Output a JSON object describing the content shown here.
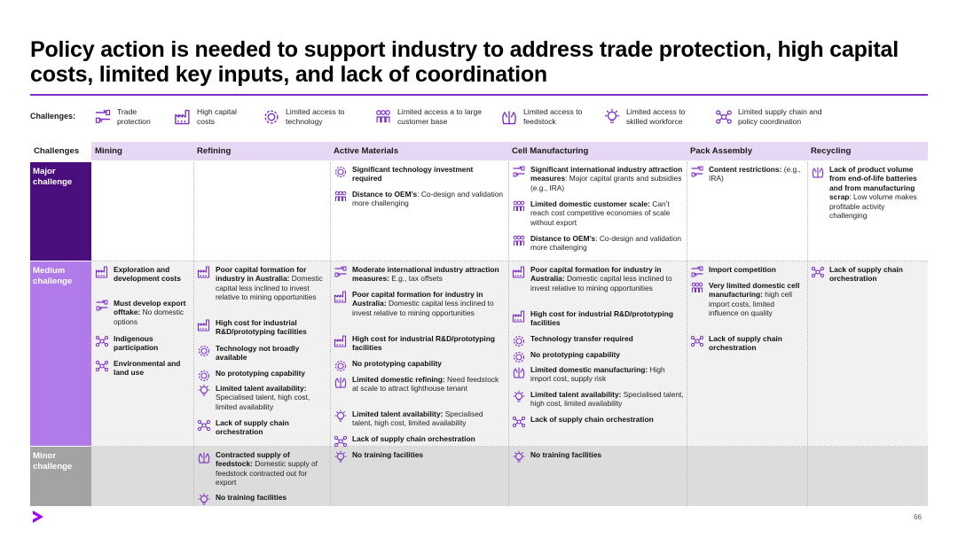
{
  "title": "Policy action is needed to support industry to address trade protection, high capital costs, limited key inputs, and lack of coordination",
  "legend": {
    "label": "Challenges:",
    "items": [
      {
        "icon": "trade-icon",
        "text": "Trade protection"
      },
      {
        "icon": "factory-icon",
        "text": "High capital costs"
      },
      {
        "icon": "gear-icon",
        "text": "Limited access to technology"
      },
      {
        "icon": "people-icon",
        "text": "Limited access a to large customer base"
      },
      {
        "icon": "hand-icon",
        "text": "Limited access to feedstock"
      },
      {
        "icon": "bulb-icon",
        "text": "Limited access to skilled workforce"
      },
      {
        "icon": "network-icon",
        "text": "Limited supply chain and policy coordination"
      }
    ]
  },
  "columns": [
    "Challenges",
    "Mining",
    "Refining",
    "Active Materials",
    "Cell Manufacturing",
    "Pack Assembly",
    "Recycling"
  ],
  "rows": [
    "Major challenge",
    "Medium challenge",
    "Minor challenge"
  ],
  "colors": {
    "major": "#4b0f7d",
    "medium": "#b07ae8",
    "minor": "#a3a3a3",
    "accent": "#7b2ec4",
    "major_bg": "#ffffff",
    "medium_bg": "#f1f1f1",
    "minor_bg": "#dcdcdc"
  },
  "cells": {
    "major_active": [
      {
        "icon": "gear-icon",
        "bold": "Significant technology investment required",
        "text": ""
      },
      {
        "icon": "people-icon",
        "bold": "Distance to OEM’s",
        "text": ": Co-design and validation more challenging"
      }
    ],
    "major_cell": [
      {
        "icon": "trade-icon",
        "bold": "Significant international industry attraction measures",
        "text": ": Major capital grants and subsidies (e.g., IRA)"
      },
      {
        "icon": "people-icon",
        "bold": "Limited domestic customer scale:",
        "text": " Can’t reach cost competitive economies of scale without export"
      },
      {
        "icon": "people-icon",
        "bold": "Distance to OEM’s",
        "text": ": Co-design and validation more challenging"
      }
    ],
    "major_pack": [
      {
        "icon": "trade-icon",
        "bold": "Content restrictions:",
        "text": " (e.g., IRA)"
      }
    ],
    "major_recycling": [
      {
        "icon": "hand-icon",
        "bold": "Lack of product volume from end-of-life batteries and from manufacturing scrap",
        "text": ": Low volume makes profitable activity challenging"
      }
    ],
    "medium_mining": [
      {
        "icon": "factory-icon",
        "bold": "Exploration and development costs",
        "text": ""
      },
      {
        "icon": "trade-icon",
        "bold": "Must develop export offtake:",
        "text": " No domestic options"
      },
      {
        "icon": "network-icon",
        "bold": "Indigenous participation",
        "text": ""
      },
      {
        "icon": "network-icon",
        "bold": "Environmental and land use",
        "text": ""
      }
    ],
    "medium_refining": [
      {
        "icon": "factory-icon",
        "bold": "Poor capital formation for industry in Australia:",
        "text": " Domestic capital less inclined to invest relative to mining opportunities"
      },
      {
        "icon": "factory-icon",
        "bold": "High cost for industrial R&D/prototyping facilities",
        "text": ""
      },
      {
        "icon": "gear-icon",
        "bold": "Technology not broadly available",
        "text": ""
      },
      {
        "icon": "gear-icon",
        "bold": "No prototyping capability",
        "text": ""
      },
      {
        "icon": "bulb-icon",
        "bold": "Limited talent availability:",
        "text": " Specialised talent, high cost, limited availability"
      },
      {
        "icon": "network-icon",
        "bold": "Lack of supply chain orchestration",
        "text": ""
      }
    ],
    "medium_active": [
      {
        "icon": "trade-icon",
        "bold": "Moderate international industry attraction measures:",
        "text": " E.g., tax offsets"
      },
      {
        "icon": "factory-icon",
        "bold": "Poor capital formation for industry in Australia:",
        "text": " Domestic capital less inclined to invest relative to mining opportunities"
      },
      {
        "icon": "factory-icon",
        "bold": "High cost for industrial R&D/prototyping facilities",
        "text": ""
      },
      {
        "icon": "gear-icon",
        "bold": "No prototyping capability",
        "text": ""
      },
      {
        "icon": "hand-icon",
        "bold": "Limited domestic refining:",
        "text": " Need feedstock at scale to attract lighthouse tenant"
      },
      {
        "icon": "bulb-icon",
        "bold": "Limited talent availability:",
        "text": " Specialised talent, high cost, limited availability"
      },
      {
        "icon": "network-icon",
        "bold": "Lack of supply chain orchestration",
        "text": ""
      }
    ],
    "medium_cell": [
      {
        "icon": "factory-icon",
        "bold": "Poor capital formation for industry in Australia:",
        "text": " Domestic capital less inclined to invest relative to mining opportunities"
      },
      {
        "icon": "factory-icon",
        "bold": "High cost for industrial R&D/prototyping facilities",
        "text": ""
      },
      {
        "icon": "gear-icon",
        "bold": "Technology transfer required",
        "text": ""
      },
      {
        "icon": "gear-icon",
        "bold": "No prototyping capability",
        "text": ""
      },
      {
        "icon": "hand-icon",
        "bold": "Limited domestic manufacturing:",
        "text": " High import cost, supply risk"
      },
      {
        "icon": "bulb-icon",
        "bold": "Limited talent availability:",
        "text": " Specialised talent, high cost, limited availability"
      },
      {
        "icon": "network-icon",
        "bold": "Lack of supply chain orchestration",
        "text": ""
      }
    ],
    "medium_pack": [
      {
        "icon": "trade-icon",
        "bold": "Import competition",
        "text": ""
      },
      {
        "icon": "people-icon",
        "bold": "Very limited domestic cell manufacturing:",
        "text": " high cell import costs, limited influence on quality"
      },
      {
        "icon": "network-icon",
        "bold": "Lack of supply chain orchestration",
        "text": ""
      }
    ],
    "medium_recycling": [
      {
        "icon": "network-icon",
        "bold": "Lack of supply chain orchestration",
        "text": ""
      }
    ],
    "minor_refining": [
      {
        "icon": "hand-icon",
        "bold": "Contracted supply of feedstock:",
        "text": " Domestic supply of feedstock contracted out for export"
      },
      {
        "icon": "bulb-icon",
        "bold": "No training facilities",
        "text": ""
      }
    ],
    "minor_active": [
      {
        "icon": "bulb-icon",
        "bold": "No training facilities",
        "text": ""
      }
    ],
    "minor_cell": [
      {
        "icon": "bulb-icon",
        "bold": "No training facilities",
        "text": ""
      }
    ]
  },
  "page_number": "66"
}
